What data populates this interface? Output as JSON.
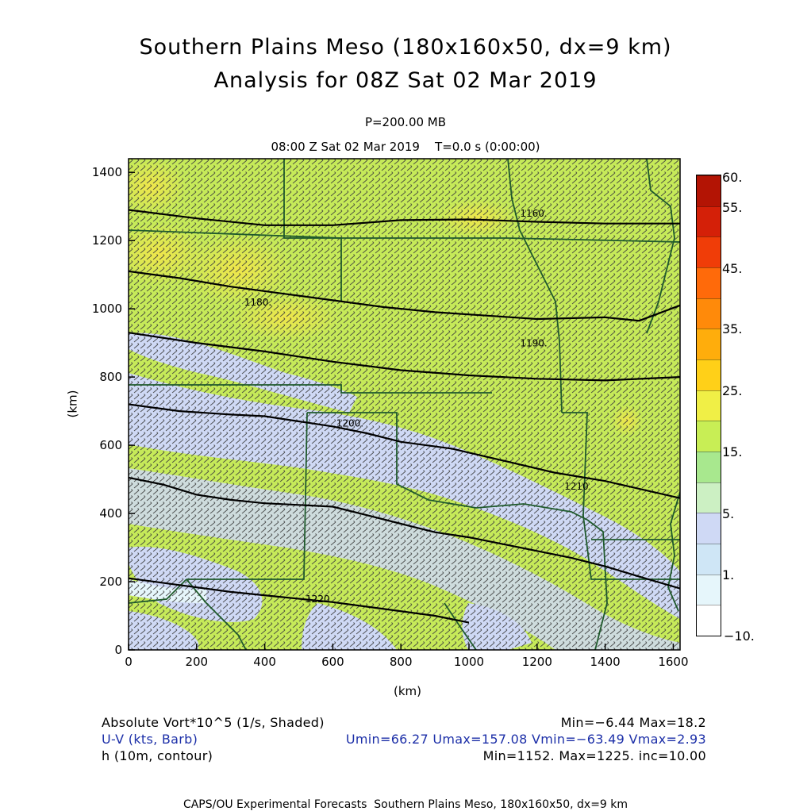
{
  "header": {
    "title_line1": "Southern Plains Meso (180x160x50, dx=9 km)",
    "title_line2": "Analysis for 08Z Sat 02 Mar 2019",
    "level": "P=200.00 MB",
    "time_line": "08:00 Z Sat 02 Mar 2019    T=0.0 s (0:00:00)"
  },
  "map": {
    "x_axis": {
      "ticks": [
        {
          "value": 0,
          "label": "0"
        },
        {
          "value": 200,
          "label": "200"
        },
        {
          "value": 400,
          "label": "400"
        },
        {
          "value": 600,
          "label": "600"
        },
        {
          "value": 800,
          "label": "800"
        },
        {
          "value": 1000,
          "label": "1000"
        },
        {
          "value": 1200,
          "label": "1200"
        },
        {
          "value": 1400,
          "label": "1400"
        },
        {
          "value": 1600,
          "label": "1600"
        }
      ],
      "label": "(km)",
      "range": [
        0,
        1620
      ]
    },
    "y_axis": {
      "ticks": [
        {
          "value": 0,
          "label": "0"
        },
        {
          "value": 200,
          "label": "200"
        },
        {
          "value": 400,
          "label": "400"
        },
        {
          "value": 600,
          "label": "600"
        },
        {
          "value": 800,
          "label": "800"
        },
        {
          "value": 1000,
          "label": "1000"
        },
        {
          "value": 1200,
          "label": "1200"
        },
        {
          "value": 1400,
          "label": "1400"
        }
      ],
      "label": "(km)",
      "range": [
        0,
        1440
      ]
    },
    "contours": [
      {
        "label": "1160.",
        "label_at": [
          1150,
          1270
        ],
        "points": [
          [
            0,
            1290
          ],
          [
            200,
            1265
          ],
          [
            400,
            1245
          ],
          [
            600,
            1245
          ],
          [
            800,
            1260
          ],
          [
            1000,
            1262
          ],
          [
            1200,
            1255
          ],
          [
            1400,
            1250
          ],
          [
            1620,
            1250
          ]
        ]
      },
      {
        "label": "1180.",
        "label_at": [
          340,
          1010
        ],
        "points": [
          [
            0,
            1110
          ],
          [
            150,
            1090
          ],
          [
            300,
            1065
          ],
          [
            450,
            1045
          ],
          [
            600,
            1025
          ],
          [
            750,
            1005
          ],
          [
            900,
            990
          ],
          [
            1050,
            980
          ],
          [
            1200,
            970
          ],
          [
            1400,
            975
          ],
          [
            1500,
            965
          ],
          [
            1620,
            1010
          ]
        ]
      },
      {
        "label": "1190.",
        "label_at": [
          1150,
          890
        ],
        "points": [
          [
            0,
            930
          ],
          [
            200,
            900
          ],
          [
            400,
            875
          ],
          [
            600,
            845
          ],
          [
            800,
            820
          ],
          [
            1000,
            805
          ],
          [
            1200,
            795
          ],
          [
            1400,
            790
          ],
          [
            1620,
            800
          ]
        ]
      },
      {
        "label": "1200.",
        "label_at": [
          610,
          655
        ],
        "points": [
          [
            0,
            720
          ],
          [
            150,
            700
          ],
          [
            300,
            690
          ],
          [
            400,
            685
          ],
          [
            500,
            670
          ],
          [
            600,
            655
          ],
          [
            700,
            635
          ],
          [
            800,
            610
          ],
          [
            950,
            590
          ],
          [
            1100,
            555
          ],
          [
            1250,
            520
          ],
          [
            1400,
            495
          ],
          [
            1620,
            445
          ]
        ]
      },
      {
        "label": "1210.",
        "label_at": [
          1280,
          470
        ],
        "points": [
          [
            0,
            505
          ],
          [
            100,
            485
          ],
          [
            200,
            455
          ],
          [
            300,
            440
          ],
          [
            400,
            430
          ],
          [
            500,
            425
          ],
          [
            600,
            420
          ],
          [
            700,
            395
          ],
          [
            800,
            370
          ],
          [
            900,
            345
          ],
          [
            1000,
            330
          ],
          [
            1100,
            310
          ],
          [
            1200,
            290
          ],
          [
            1300,
            270
          ],
          [
            1400,
            245
          ],
          [
            1500,
            215
          ],
          [
            1620,
            180
          ]
        ]
      },
      {
        "label": "1220.",
        "label_at": [
          520,
          140
        ],
        "points": [
          [
            0,
            210
          ],
          [
            150,
            190
          ],
          [
            300,
            170
          ],
          [
            450,
            155
          ],
          [
            600,
            140
          ],
          [
            750,
            120
          ],
          [
            900,
            100
          ],
          [
            1000,
            80
          ]
        ]
      }
    ]
  },
  "colorbar": {
    "labels": [
      "60.",
      "55.",
      "45.",
      "35.",
      "25.",
      "15.",
      "5.",
      "1.",
      "−10."
    ],
    "colors": [
      "#ffffff",
      "#e6f6fb",
      "#cfe6f6",
      "#cfd9f5",
      "#ccf0c3",
      "#a8e88e",
      "#c8ee55",
      "#f0ef46",
      "#ffd018",
      "#ffad0c",
      "#ff8a0a",
      "#ff6a0a",
      "#f03d08",
      "#d42008",
      "#b31404"
    ]
  },
  "info": {
    "field1_name": "Absolute Vort*10^5 (1/s, Shaded)",
    "field1_stats": "Min=−6.44 Max=18.2",
    "field2_name": "U-V (kts, Barb)",
    "field2_stats": "Umin=66.27 Umax=157.08 Vmin=−63.49 Vmax=2.93",
    "field3_name": "h (10m, contour)",
    "field3_stats": "Min=1152. Max=1225. inc=10.00"
  },
  "footer": "CAPS/OU Experimental Forecasts  Southern Plains Meso, 180x160x50, dx=9 km"
}
